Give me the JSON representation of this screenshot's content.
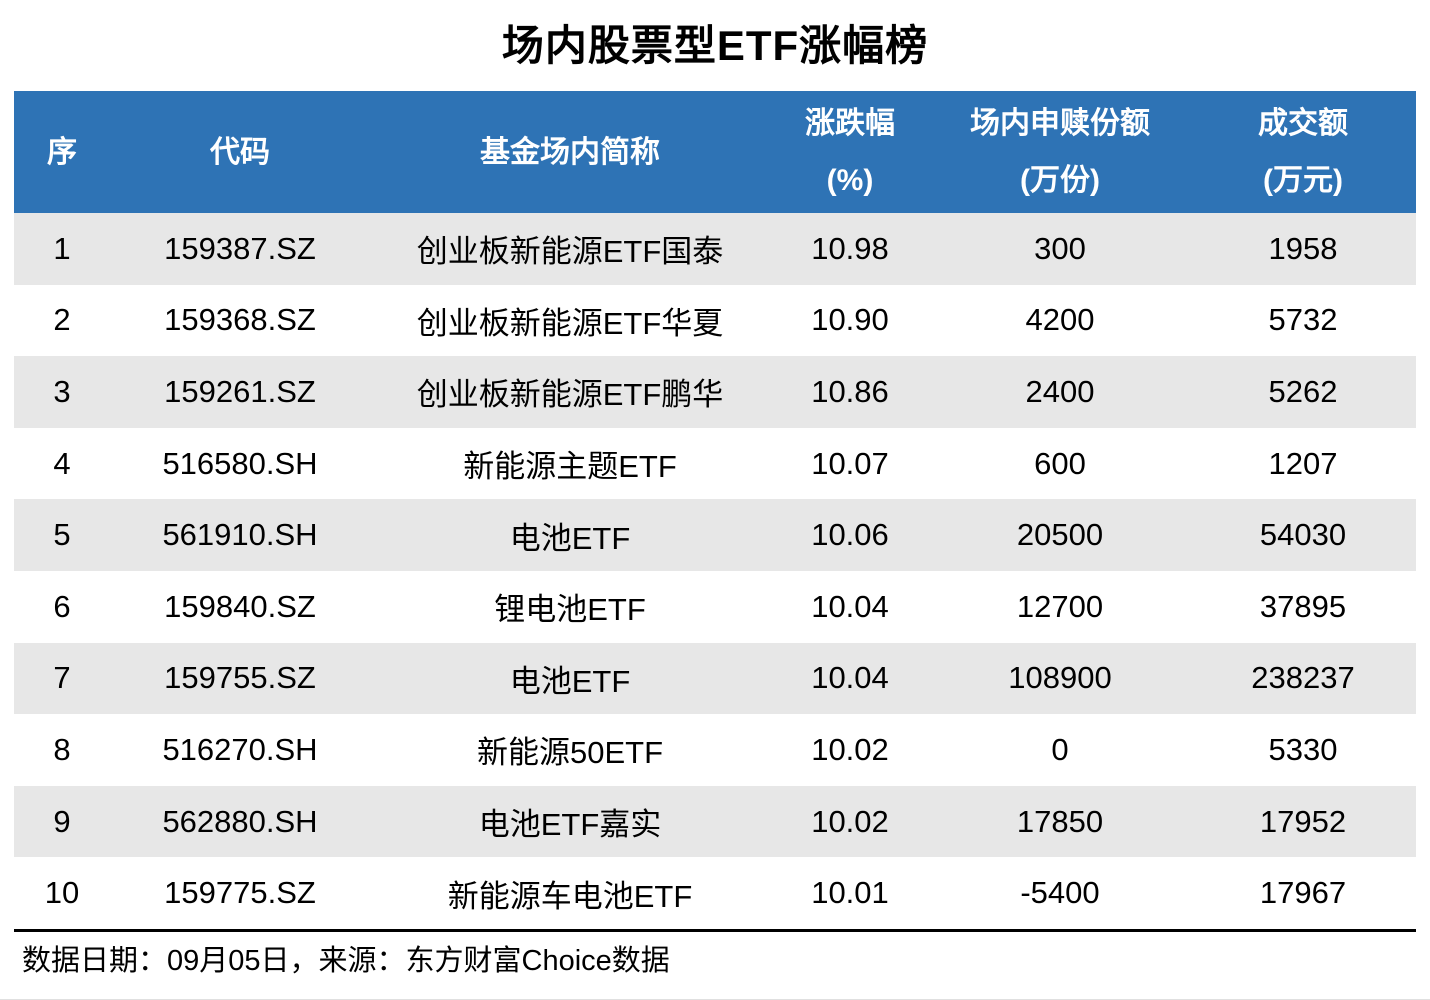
{
  "title": "场内股票型ETF涨幅榜",
  "table": {
    "columns": [
      {
        "label": "序",
        "sub": ""
      },
      {
        "label": "代码",
        "sub": ""
      },
      {
        "label": "基金场内简称",
        "sub": ""
      },
      {
        "label": "涨跌幅",
        "sub": "(%)"
      },
      {
        "label": "场内申赎份额",
        "sub": "(万份)"
      },
      {
        "label": "成交额",
        "sub": "(万元)"
      }
    ],
    "rows": [
      {
        "seq": "1",
        "code": "159387.SZ",
        "name": "创业板新能源ETF国泰",
        "change_pct": "10.98",
        "shares_10k": "300",
        "turnover_10k": "1958"
      },
      {
        "seq": "2",
        "code": "159368.SZ",
        "name": "创业板新能源ETF华夏",
        "change_pct": "10.90",
        "shares_10k": "4200",
        "turnover_10k": "5732"
      },
      {
        "seq": "3",
        "code": "159261.SZ",
        "name": "创业板新能源ETF鹏华",
        "change_pct": "10.86",
        "shares_10k": "2400",
        "turnover_10k": "5262"
      },
      {
        "seq": "4",
        "code": "516580.SH",
        "name": "新能源主题ETF",
        "change_pct": "10.07",
        "shares_10k": "600",
        "turnover_10k": "1207"
      },
      {
        "seq": "5",
        "code": "561910.SH",
        "name": "电池ETF",
        "change_pct": "10.06",
        "shares_10k": "20500",
        "turnover_10k": "54030"
      },
      {
        "seq": "6",
        "code": "159840.SZ",
        "name": "锂电池ETF",
        "change_pct": "10.04",
        "shares_10k": "12700",
        "turnover_10k": "37895"
      },
      {
        "seq": "7",
        "code": "159755.SZ",
        "name": "电池ETF",
        "change_pct": "10.04",
        "shares_10k": "108900",
        "turnover_10k": "238237"
      },
      {
        "seq": "8",
        "code": "516270.SH",
        "name": "新能源50ETF",
        "change_pct": "10.02",
        "shares_10k": "0",
        "turnover_10k": "5330"
      },
      {
        "seq": "9",
        "code": "562880.SH",
        "name": "电池ETF嘉实",
        "change_pct": "10.02",
        "shares_10k": "17850",
        "turnover_10k": "17952"
      },
      {
        "seq": "10",
        "code": "159775.SZ",
        "name": "新能源车电池ETF",
        "change_pct": "10.01",
        "shares_10k": "-5400",
        "turnover_10k": "17967"
      }
    ]
  },
  "footer": {
    "text": "数据日期：09月05日，来源：东方财富Choice数据"
  },
  "colors": {
    "header_bg": "#2E73B5",
    "header_text": "#FFFFFF",
    "row_alt_bg": "#E7E7E7",
    "body_text": "#000000"
  }
}
